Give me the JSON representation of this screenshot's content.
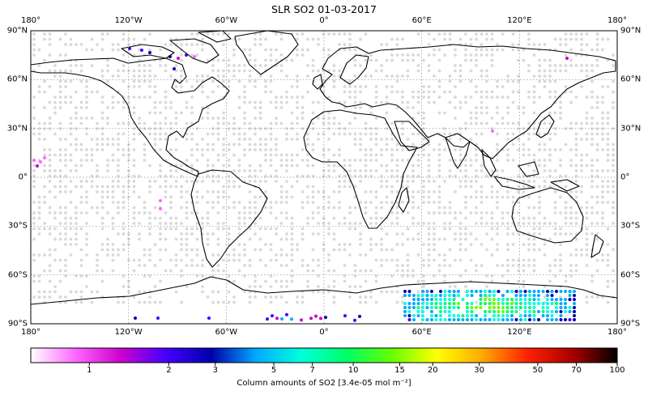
{
  "title": "SLR SO2 01-03-2017",
  "lon_labels": [
    "180°",
    "120°W",
    "60°W",
    "0°",
    "60°E",
    "120°E",
    "180°"
  ],
  "lat_labels": [
    "90°N",
    "60°N",
    "30°N",
    "0°",
    "30°S",
    "60°S",
    "90°S"
  ],
  "colorbar": {
    "label": "Column amounts of SO2 [3.4e-05 mol m⁻²]",
    "ticks": [
      "1",
      "2",
      "3",
      "5",
      "7",
      "10",
      "15",
      "20",
      "30",
      "50",
      "70",
      "100"
    ],
    "range": [
      0.6,
      100
    ],
    "scale": "log",
    "colors": [
      "#ffffff",
      "#ff66ff",
      "#cc00cc",
      "#4400ff",
      "#0000aa",
      "#00aaff",
      "#00ffdd",
      "#00ff66",
      "#66ff00",
      "#ffff00",
      "#ffaa00",
      "#ff2200",
      "#aa0000",
      "#000000"
    ]
  },
  "background_dot_color": "#d9d9d9"
}
